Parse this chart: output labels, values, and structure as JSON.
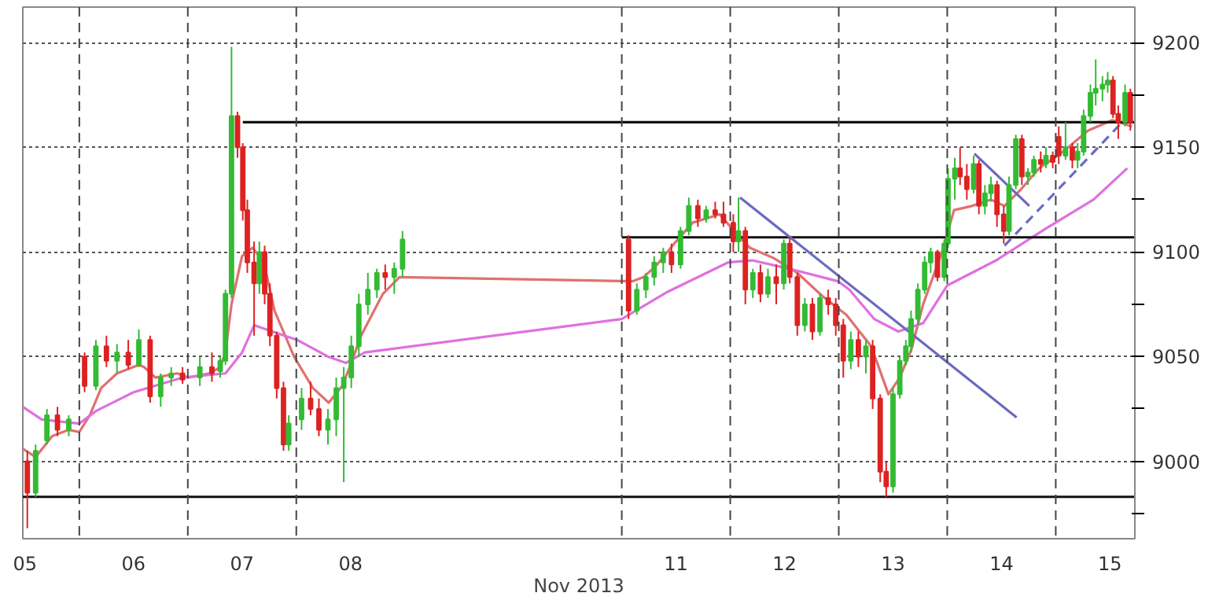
{
  "chart_data": {
    "type": "candlestick",
    "xlabel": "Nov 2013",
    "x": [
      "2013-11-05T12:30",
      "2013-11-05T14:20",
      "2013-11-05T16:50",
      "2013-11-05T19:10",
      "2013-11-05T21:40",
      "2013-11-06T01:10",
      "2013-11-06T03:40",
      "2013-11-06T06:00",
      "2013-11-06T08:20",
      "2013-11-06T10:50",
      "2013-11-06T13:10",
      "2013-11-06T15:40",
      "2013-11-06T18:00",
      "2013-11-06T20:20",
      "2013-11-06T22:50",
      "2013-11-07T02:40",
      "2013-11-07T05:20",
      "2013-11-07T07:10",
      "2013-11-07T08:20",
      "2013-11-07T09:40",
      "2013-11-07T11:00",
      "2013-11-07T12:10",
      "2013-11-07T13:10",
      "2013-11-07T14:40",
      "2013-11-07T15:50",
      "2013-11-07T17:00",
      "2013-11-07T18:10",
      "2013-11-07T19:40",
      "2013-11-07T21:10",
      "2013-11-07T22:20",
      "2013-11-08T01:10",
      "2013-11-08T03:10",
      "2013-11-08T05:00",
      "2013-11-08T07:00",
      "2013-11-08T08:50",
      "2013-11-08T10:30",
      "2013-11-08T12:10",
      "2013-11-08T13:50",
      "2013-11-08T15:50",
      "2013-11-08T17:50",
      "2013-11-08T19:40",
      "2013-11-08T21:40",
      "2013-11-08T23:30",
      "2013-11-11T01:30",
      "2013-11-11T03:20",
      "2013-11-11T05:20",
      "2013-11-11T07:10",
      "2013-11-11T09:10",
      "2013-11-11T11:00",
      "2013-11-11T13:00",
      "2013-11-11T14:50",
      "2013-11-11T16:50",
      "2013-11-11T18:40",
      "2013-11-11T20:40",
      "2013-11-11T22:30",
      "2013-11-12T00:40",
      "2013-11-12T01:50",
      "2013-11-12T03:20",
      "2013-11-12T05:00",
      "2013-11-12T06:40",
      "2013-11-12T08:20",
      "2013-11-12T10:10",
      "2013-11-12T11:50",
      "2013-11-12T13:10",
      "2013-11-12T14:50",
      "2013-11-12T16:30",
      "2013-11-12T18:10",
      "2013-11-12T19:50",
      "2013-11-12T21:40",
      "2013-11-12T23:20",
      "2013-11-13T01:00",
      "2013-11-13T02:40",
      "2013-11-13T04:20",
      "2013-11-13T06:00",
      "2013-11-13T07:30",
      "2013-11-13T09:10",
      "2013-11-13T10:30",
      "2013-11-13T12:00",
      "2013-11-13T13:30",
      "2013-11-13T14:50",
      "2013-11-13T16:00",
      "2013-11-13T17:30",
      "2013-11-13T19:00",
      "2013-11-13T20:20",
      "2013-11-13T21:50",
      "2013-11-13T23:20",
      "2013-11-14T00:10",
      "2013-11-14T01:40",
      "2013-11-14T02:50",
      "2013-11-14T04:20",
      "2013-11-14T05:50",
      "2013-11-14T07:00",
      "2013-11-14T08:20",
      "2013-11-14T09:40",
      "2013-11-14T11:00",
      "2013-11-14T12:30",
      "2013-11-14T13:40",
      "2013-11-14T15:10",
      "2013-11-14T16:30",
      "2013-11-14T17:50",
      "2013-11-14T19:10",
      "2013-11-14T20:40",
      "2013-11-14T21:50",
      "2013-11-14T23:20",
      "2013-11-15T00:40",
      "2013-11-15T02:10",
      "2013-11-15T03:40",
      "2013-11-15T04:50",
      "2013-11-15T06:10",
      "2013-11-15T07:40",
      "2013-11-15T08:50",
      "2013-11-15T10:20",
      "2013-11-15T11:30",
      "2013-11-15T12:40",
      "2013-11-15T13:50",
      "2013-11-15T15:20",
      "2013-11-15T16:30"
    ],
    "ohlc": [
      [
        9000,
        9005,
        8968,
        8985
      ],
      [
        8985,
        9008,
        8983,
        9005
      ],
      [
        9010,
        9025,
        9008,
        9022
      ],
      [
        9022,
        9026,
        9012,
        9015
      ],
      [
        9015,
        9022,
        9012,
        9020
      ],
      [
        9050,
        9052,
        9033,
        9036
      ],
      [
        9036,
        9058,
        9034,
        9055
      ],
      [
        9055,
        9060,
        9045,
        9048
      ],
      [
        9048,
        9056,
        9042,
        9052
      ],
      [
        9052,
        9058,
        9044,
        9046
      ],
      [
        9046,
        9063,
        9045,
        9058
      ],
      [
        9058,
        9060,
        9028,
        9031
      ],
      [
        9031,
        9042,
        9026,
        9040
      ],
      [
        9040,
        9045,
        9036,
        9042
      ],
      [
        9042,
        9045,
        9037,
        9039
      ],
      [
        9040,
        9050,
        9036,
        9045
      ],
      [
        9045,
        9052,
        9038,
        9042
      ],
      [
        9043,
        9050,
        9040,
        9048
      ],
      [
        9048,
        9082,
        9046,
        9080
      ],
      [
        9080,
        9198,
        9078,
        9165
      ],
      [
        9165,
        9167,
        9145,
        9150
      ],
      [
        9150,
        9152,
        9115,
        9120
      ],
      [
        9120,
        9125,
        9090,
        9095
      ],
      [
        9095,
        9105,
        9060,
        9085
      ],
      [
        9085,
        9105,
        9080,
        9100
      ],
      [
        9100,
        9103,
        9075,
        9080
      ],
      [
        9080,
        9085,
        9055,
        9060
      ],
      [
        9060,
        9062,
        9030,
        9035
      ],
      [
        9035,
        9038,
        9005,
        9008
      ],
      [
        9008,
        9022,
        9005,
        9018
      ],
      [
        9020,
        9035,
        9015,
        9030
      ],
      [
        9030,
        9038,
        9022,
        9025
      ],
      [
        9025,
        9030,
        9012,
        9015
      ],
      [
        9015,
        9025,
        9008,
        9020
      ],
      [
        9020,
        9040,
        9012,
        9035
      ],
      [
        9035,
        9045,
        8990,
        9040
      ],
      [
        9040,
        9060,
        9035,
        9055
      ],
      [
        9055,
        9080,
        9050,
        9075
      ],
      [
        9075,
        9090,
        9070,
        9082
      ],
      [
        9082,
        9092,
        9078,
        9090
      ],
      [
        9090,
        9094,
        9082,
        9088
      ],
      [
        9088,
        9095,
        9080,
        9092
      ],
      [
        9092,
        9110,
        9088,
        9106
      ],
      [
        9106,
        9108,
        9068,
        9072
      ],
      [
        9072,
        9085,
        9070,
        9082
      ],
      [
        9082,
        9090,
        9078,
        9088
      ],
      [
        9088,
        9098,
        9084,
        9095
      ],
      [
        9095,
        9102,
        9090,
        9100
      ],
      [
        9100,
        9104,
        9090,
        9094
      ],
      [
        9094,
        9112,
        9092,
        9110
      ],
      [
        9110,
        9126,
        9108,
        9122
      ],
      [
        9122,
        9125,
        9112,
        9116
      ],
      [
        9116,
        9122,
        9114,
        9120
      ],
      [
        9120,
        9124,
        9116,
        9118
      ],
      [
        9118,
        9124,
        9112,
        9114
      ],
      [
        9114,
        9118,
        9100,
        9105
      ],
      [
        9105,
        9126,
        9100,
        9110
      ],
      [
        9110,
        9112,
        9075,
        9082
      ],
      [
        9082,
        9092,
        9078,
        9090
      ],
      [
        9090,
        9094,
        9076,
        9080
      ],
      [
        9080,
        9092,
        9078,
        9088
      ],
      [
        9088,
        9094,
        9075,
        9085
      ],
      [
        9085,
        9106,
        9082,
        9104
      ],
      [
        9104,
        9107,
        9085,
        9088
      ],
      [
        9088,
        9090,
        9060,
        9065
      ],
      [
        9065,
        9078,
        9062,
        9075
      ],
      [
        9075,
        9078,
        9058,
        9062
      ],
      [
        9062,
        9080,
        9060,
        9078
      ],
      [
        9078,
        9082,
        9070,
        9075
      ],
      [
        9075,
        9078,
        9060,
        9065
      ],
      [
        9065,
        9068,
        9040,
        9048
      ],
      [
        9048,
        9062,
        9044,
        9058
      ],
      [
        9058,
        9062,
        9045,
        9050
      ],
      [
        9050,
        9058,
        9042,
        9055
      ],
      [
        9055,
        9058,
        9025,
        9030
      ],
      [
        9030,
        9032,
        8990,
        8995
      ],
      [
        8995,
        9000,
        8983,
        8988
      ],
      [
        8988,
        9035,
        8985,
        9032
      ],
      [
        9032,
        9050,
        9030,
        9048
      ],
      [
        9048,
        9058,
        9046,
        9055
      ],
      [
        9055,
        9072,
        9052,
        9068
      ],
      [
        9068,
        9085,
        9065,
        9082
      ],
      [
        9082,
        9098,
        9080,
        9095
      ],
      [
        9095,
        9102,
        9090,
        9100
      ],
      [
        9100,
        9101,
        9086,
        9088
      ],
      [
        9088,
        9106,
        9086,
        9104
      ],
      [
        9104,
        9140,
        9102,
        9135
      ],
      [
        9135,
        9145,
        9125,
        9140
      ],
      [
        9140,
        9150,
        9132,
        9136
      ],
      [
        9136,
        9142,
        9125,
        9130
      ],
      [
        9130,
        9146,
        9128,
        9142
      ],
      [
        9142,
        9144,
        9118,
        9122
      ],
      [
        9122,
        9132,
        9118,
        9128
      ],
      [
        9128,
        9136,
        9124,
        9132
      ],
      [
        9132,
        9134,
        9112,
        9118
      ],
      [
        9118,
        9122,
        9104,
        9110
      ],
      [
        9110,
        9136,
        9108,
        9132
      ],
      [
        9132,
        9156,
        9130,
        9154
      ],
      [
        9154,
        9156,
        9132,
        9136
      ],
      [
        9136,
        9140,
        9132,
        9138
      ],
      [
        9138,
        9146,
        9136,
        9144
      ],
      [
        9144,
        9148,
        9138,
        9142
      ],
      [
        9142,
        9150,
        9140,
        9146
      ],
      [
        9146,
        9148,
        9140,
        9143
      ],
      [
        9155,
        9160,
        9142,
        9146
      ],
      [
        9146,
        9162,
        9144,
        9150
      ],
      [
        9150,
        9152,
        9140,
        9144
      ],
      [
        9144,
        9152,
        9140,
        9148
      ],
      [
        9148,
        9168,
        9146,
        9165
      ],
      [
        9165,
        9180,
        9162,
        9176
      ],
      [
        9176,
        9192,
        9170,
        9178
      ],
      [
        9178,
        9184,
        9172,
        9180
      ],
      [
        9180,
        9186,
        9176,
        9182
      ],
      [
        9182,
        9184,
        9164,
        9166
      ],
      [
        9166,
        9170,
        9154,
        9162
      ],
      [
        9162,
        9180,
        9160,
        9176
      ],
      [
        9176,
        9178,
        9158,
        9162
      ]
    ],
    "colors": [
      "#dd2222",
      "#33bb33",
      "#33bb33",
      "#dd2222",
      "#33bb33",
      "#dd2222",
      "#33bb33",
      "#dd2222",
      "#33bb33",
      "#dd2222",
      "#33bb33",
      "#dd2222",
      "#33bb33",
      "#33bb33",
      "#dd2222",
      "#33bb33",
      "#dd2222",
      "#33bb33",
      "#33bb33",
      "#33bb33",
      "#dd2222",
      "#dd2222",
      "#dd2222",
      "#dd2222",
      "#33bb33",
      "#dd2222",
      "#dd2222",
      "#dd2222",
      "#dd2222",
      "#33bb33",
      "#33bb33",
      "#dd2222",
      "#dd2222",
      "#33bb33",
      "#33bb33",
      "#33bb33",
      "#33bb33",
      "#33bb33",
      "#33bb33",
      "#33bb33",
      "#dd2222",
      "#33bb33",
      "#33bb33",
      "#dd2222",
      "#33bb33",
      "#33bb33",
      "#33bb33",
      "#33bb33",
      "#dd2222",
      "#33bb33",
      "#33bb33",
      "#dd2222",
      "#33bb33",
      "#dd2222",
      "#dd2222",
      "#dd2222",
      "#33bb33",
      "#dd2222",
      "#33bb33",
      "#dd2222",
      "#33bb33",
      "#dd2222",
      "#33bb33",
      "#dd2222",
      "#dd2222",
      "#33bb33",
      "#dd2222",
      "#33bb33",
      "#dd2222",
      "#dd2222",
      "#dd2222",
      "#33bb33",
      "#dd2222",
      "#33bb33",
      "#dd2222",
      "#dd2222",
      "#dd2222",
      "#33bb33",
      "#33bb33",
      "#33bb33",
      "#33bb33",
      "#33bb33",
      "#33bb33",
      "#33bb33",
      "#dd2222",
      "#33bb33",
      "#33bb33",
      "#33bb33",
      "#dd2222",
      "#dd2222",
      "#33bb33",
      "#dd2222",
      "#33bb33",
      "#33bb33",
      "#dd2222",
      "#dd2222",
      "#33bb33",
      "#33bb33",
      "#dd2222",
      "#33bb33",
      "#33bb33",
      "#dd2222",
      "#33bb33",
      "#dd2222",
      "#dd2222",
      "#33bb33",
      "#dd2222",
      "#33bb33",
      "#33bb33",
      "#33bb33",
      "#33bb33",
      "#33bb33",
      "#33bb33",
      "#dd2222",
      "#dd2222",
      "#33bb33",
      "#dd2222"
    ],
    "xlim": [
      "2013-11-05T11:30",
      "2013-11-15T17:30"
    ],
    "xticks": [
      {
        "value": "2013-11-05T12:00",
        "label": "05"
      },
      {
        "value": "2013-11-06T12:00",
        "label": "06"
      },
      {
        "value": "2013-11-07T12:00",
        "label": "07"
      },
      {
        "value": "2013-11-08T12:00",
        "label": "08"
      },
      {
        "value": "2013-11-11T12:00",
        "label": "11"
      },
      {
        "value": "2013-11-12T12:00",
        "label": "12"
      },
      {
        "value": "2013-11-13T12:00",
        "label": "13"
      },
      {
        "value": "2013-11-14T12:00",
        "label": "14"
      },
      {
        "value": "2013-11-15T12:00",
        "label": "15"
      }
    ],
    "ylim": [
      8963,
      9217
    ],
    "yticks": [
      {
        "value": 8975,
        "label": null
      },
      9000,
      {
        "value": 9025,
        "label": null
      },
      9050,
      {
        "value": 9075,
        "label": null
      },
      9100,
      {
        "value": 9125,
        "label": null
      },
      9150,
      {
        "value": 9175,
        "label": null
      },
      9200
    ],
    "grid": "y",
    "ref_lines": [
      {
        "axis": "x",
        "value": "2013-11-06T00:00",
        "color": "#444444",
        "line_style": "dashed"
      },
      {
        "axis": "x",
        "value": "2013-11-07T00:00",
        "color": "#444444",
        "line_style": "dashed"
      },
      {
        "axis": "x",
        "value": "2013-11-08T00:00",
        "color": "#444444",
        "line_style": "dashed"
      },
      {
        "axis": "x",
        "value": "2013-11-11T00:00",
        "color": "#444444",
        "line_style": "dashed"
      },
      {
        "axis": "x",
        "value": "2013-11-12T00:00",
        "color": "#444444",
        "line_style": "dashed"
      },
      {
        "axis": "x",
        "value": "2013-11-13T00:00",
        "color": "#444444",
        "line_style": "dashed"
      },
      {
        "axis": "x",
        "value": "2013-11-14T00:00",
        "color": "#444444",
        "line_style": "dashed"
      },
      {
        "axis": "x",
        "value": "2013-11-15T00:00",
        "color": "#444444",
        "line_style": "dashed"
      }
    ],
    "series": [
      {
        "type": "line",
        "color": "#e07070",
        "x": [
          "2013-11-05T11:30",
          "2013-11-05T14:20",
          "2013-11-05T18:00",
          "2013-11-05T21:40",
          "2013-11-06T00:00",
          "2013-11-06T02:20",
          "2013-11-06T04:50",
          "2013-11-06T08:20",
          "2013-11-06T13:10",
          "2013-11-06T14:20",
          "2013-11-06T16:50",
          "2013-11-06T21:40",
          "2013-11-07T00:00",
          "2013-11-07T04:50",
          "2013-11-07T07:10",
          "2013-11-07T08:20",
          "2013-11-07T09:40",
          "2013-11-07T12:00",
          "2013-11-07T14:20",
          "2013-11-07T16:50",
          "2013-11-07T19:10",
          "2013-11-07T23:30",
          "2013-11-08T03:40",
          "2013-11-08T07:10",
          "2013-11-08T10:10",
          "2013-11-08T12:00",
          "2013-11-08T14:20",
          "2013-11-08T19:10",
          "2013-11-08T22:50",
          "2013-11-11T02:20",
          "2013-11-11T04:50",
          "2013-11-11T07:50",
          "2013-11-11T12:00",
          "2013-11-11T15:40",
          "2013-11-11T21:40",
          "2013-11-12T01:40",
          "2013-11-12T04:20",
          "2013-11-12T09:40",
          "2013-11-12T14:50",
          "2013-11-12T20:20",
          "2013-11-13T01:40",
          "2013-11-13T07:10",
          "2013-11-13T11:00",
          "2013-11-13T13:30",
          "2013-11-13T16:00",
          "2013-11-13T18:40",
          "2013-11-13T22:50",
          "2013-11-14T01:30",
          "2013-11-14T05:30",
          "2013-11-14T09:40",
          "2013-11-14T12:40",
          "2013-11-14T16:20",
          "2013-11-14T20:20",
          "2013-11-15T01:40",
          "2013-11-15T07:10",
          "2013-11-15T12:30",
          "2013-11-15T16:50"
        ],
        "values": [
          9006,
          9002,
          9012,
          9015,
          9014,
          9022,
          9035,
          9042,
          9046,
          9045,
          9040,
          9042,
          9040,
          9042,
          9045,
          9052,
          9075,
          9098,
          9102,
          9095,
          9072,
          9050,
          9035,
          9028,
          9036,
          9046,
          9060,
          9080,
          9088,
          9086,
          9088,
          9094,
          9105,
          9114,
          9118,
          9108,
          9102,
          9097,
          9090,
          9079,
          9070,
          9055,
          9032,
          9040,
          9053,
          9075,
          9100,
          9120,
          9122,
          9125,
          9122,
          9130,
          9140,
          9148,
          9158,
          9163,
          9160
        ]
      },
      {
        "type": "line",
        "color": "#e070e0",
        "x": [
          "2013-11-05T11:30",
          "2013-11-05T15:40",
          "2013-11-06T00:00",
          "2013-11-06T03:40",
          "2013-11-06T12:00",
          "2013-11-06T22:50",
          "2013-11-07T08:20",
          "2013-11-07T12:00",
          "2013-11-07T14:40",
          "2013-11-07T18:40",
          "2013-11-08T00:10",
          "2013-11-08T07:00",
          "2013-11-08T11:00",
          "2013-11-08T15:10",
          "2013-11-11T00:00",
          "2013-11-11T10:10",
          "2013-11-11T23:30",
          "2013-11-12T04:50",
          "2013-11-12T13:00",
          "2013-11-12T23:50",
          "2013-11-13T02:20",
          "2013-11-13T07:50",
          "2013-11-13T13:10",
          "2013-11-13T18:40",
          "2013-11-14T00:00",
          "2013-11-14T10:50",
          "2013-11-14T21:40",
          "2013-11-15T08:20",
          "2013-11-15T15:50"
        ],
        "values": [
          9026,
          9020,
          9018,
          9024,
          9033,
          9040,
          9042,
          9052,
          9065,
          9062,
          9058,
          9050,
          9047,
          9052,
          9068,
          9081,
          9095,
          9096,
          9092,
          9086,
          9082,
          9068,
          9062,
          9066,
          9084,
          9096,
          9111,
          9125,
          9140
        ]
      },
      {
        "type": "line",
        "color": "#111111",
        "x": [
          "2013-11-07T12:10",
          "2013-11-15T17:30"
        ],
        "values": [
          9162,
          9162
        ]
      },
      {
        "type": "line",
        "color": "#111111",
        "x": [
          "2013-11-11T00:00",
          "2013-11-15T17:30"
        ],
        "values": [
          9107,
          9107
        ]
      },
      {
        "type": "line",
        "color": "#111111",
        "x": [
          "2013-11-05T11:30",
          "2013-11-15T17:30"
        ],
        "values": [
          8983,
          8983
        ]
      },
      {
        "type": "line",
        "color": "#6a6ac0",
        "x": [
          "2013-11-12T02:10",
          "2013-11-14T15:20"
        ],
        "values": [
          9126,
          9021
        ]
      },
      {
        "type": "line",
        "color": "#6a6ac0",
        "x": [
          "2013-11-14T06:00",
          "2013-11-14T18:10"
        ],
        "values": [
          9147,
          9122
        ]
      },
      {
        "type": "line",
        "color": "#6a6ac0",
        "line_style": "dashed",
        "x": [
          "2013-11-14T12:40",
          "2013-11-15T17:20"
        ],
        "values": [
          9103,
          9168
        ]
      }
    ]
  }
}
